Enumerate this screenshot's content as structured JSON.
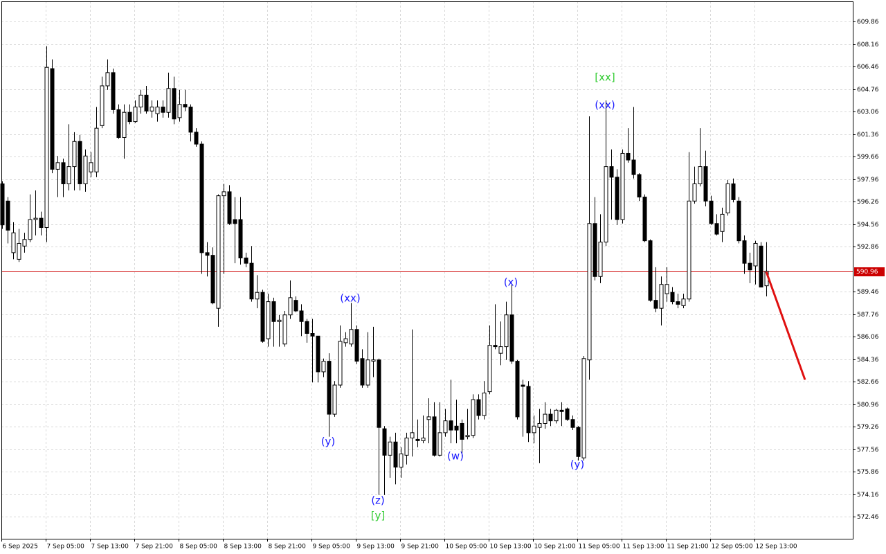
{
  "chart_data": {
    "type": "candlestick",
    "categories": [
      "6 Sep 2025",
      null,
      null,
      null,
      null,
      null,
      null,
      null,
      "7 Sep 05:00",
      null,
      null,
      null,
      null,
      null,
      null,
      null,
      "7 Sep 13:00",
      null,
      null,
      null,
      null,
      null,
      null,
      null,
      "7 Sep 21:00",
      null,
      null,
      null,
      null,
      null,
      null,
      null,
      "8 Sep 05:00",
      null,
      null,
      null,
      null,
      null,
      null,
      null,
      "8 Sep 13:00",
      null,
      null,
      null,
      null,
      null,
      null,
      null,
      "8 Sep 21:00",
      null,
      null,
      null,
      null,
      null,
      null,
      null,
      "9 Sep 05:00",
      null,
      null,
      null,
      null,
      null,
      null,
      null,
      "9 Sep 13:00",
      null,
      null,
      null,
      null,
      null,
      null,
      null,
      "9 Sep 21:00",
      null,
      null,
      null,
      null,
      null,
      null,
      null,
      "10 Sep 05:00",
      null,
      null,
      null,
      null,
      null,
      null,
      null,
      "10 Sep 13:00",
      null,
      null,
      null,
      null,
      null,
      null,
      null,
      "10 Sep 21:00",
      null,
      null,
      null,
      null,
      null,
      null,
      null,
      "11 Sep 05:00",
      null,
      null,
      null,
      null,
      null,
      null,
      null,
      "11 Sep 13:00",
      null,
      null,
      null,
      null,
      null,
      null,
      null,
      "11 Sep 21:00",
      null,
      null,
      null,
      null,
      null,
      null,
      null,
      "12 Sep 05:00",
      null,
      null,
      null,
      null,
      null,
      null,
      null,
      "12 Sep 13:00",
      null,
      null
    ],
    "open": [
      597.6,
      596.3,
      592.4,
      591.9,
      592.9,
      593.4,
      594.9,
      595.0,
      594.3,
      606.3,
      598.7,
      599.2,
      597.6,
      598.9,
      600.8,
      597.6,
      598.5,
      598.5,
      602.0,
      605.0,
      606.0,
      603.2,
      601.1,
      603.0,
      602.3,
      603.4,
      604.3,
      603.1,
      602.9,
      603.4,
      603.0,
      604.8,
      602.6,
      603.6,
      603.4,
      601.5,
      600.6,
      592.4,
      592.2,
      588.2,
      596.7,
      597.0,
      594.9,
      594.9,
      592.0,
      591.6,
      588.9,
      589.4,
      585.9,
      588.7,
      587.2,
      585.5,
      587.7,
      588.8,
      588.0,
      587.2,
      586.3,
      586.1,
      583.4,
      584.2,
      580.2,
      582.4,
      585.6,
      585.5,
      586.6,
      584.4,
      582.4,
      584.2,
      584.3,
      579.1,
      577.1,
      578.1,
      576.2,
      577.1,
      578.4,
      578.3,
      578.2,
      579.8,
      580.0,
      577.1,
      578.8,
      579.7,
      579.3,
      579.5,
      578.5,
      578.6,
      581.3,
      580.1,
      581.9,
      585.4,
      584.8,
      585.3,
      587.7,
      584.2,
      582.4,
      582.3,
      578.8,
      579.2,
      579.5,
      580.2,
      579.7,
      580.5,
      580.6,
      579.8,
      579.2,
      576.9,
      584.3,
      594.6,
      590.6,
      593.2,
      598.9,
      598.1,
      594.9,
      599.9,
      599.4,
      598.3,
      596.6,
      593.3,
      588.8,
      588.2,
      589.3,
      589.4,
      588.7,
      588.4,
      588.9,
      596.3,
      597.6,
      598.9,
      596.3,
      594.6,
      594.0,
      595.4,
      597.6,
      596.3,
      593.3,
      591.6,
      591.4,
      592.9,
      589.9
    ],
    "high": [
      597.8,
      596.6,
      594.7,
      594.2,
      593.9,
      596.8,
      597.1,
      595.5,
      608.0,
      607.0,
      599.7,
      599.5,
      602.1,
      601.5,
      601.3,
      600.2,
      600.0,
      603.4,
      605.7,
      607.0,
      606.3,
      603.6,
      603.6,
      603.6,
      603.9,
      604.7,
      605.0,
      603.9,
      603.9,
      603.9,
      606.0,
      605.7,
      604.7,
      604.7,
      603.6,
      601.8,
      600.8,
      593.2,
      592.8,
      596.8,
      597.6,
      597.5,
      596.6,
      596.6,
      592.4,
      592.9,
      590.7,
      589.6,
      589.3,
      589.0,
      587.7,
      588.0,
      590.3,
      589.1,
      588.5,
      587.4,
      587.4,
      586.1,
      584.4,
      584.8,
      582.7,
      586.9,
      586.4,
      588.6,
      586.9,
      585.1,
      586.4,
      586.8,
      584.4,
      579.3,
      578.5,
      578.8,
      577.7,
      578.8,
      586.6,
      579.8,
      580.1,
      581.4,
      581.1,
      581.1,
      580.6,
      582.8,
      581.3,
      579.8,
      580.6,
      581.7,
      581.7,
      582.7,
      586.9,
      588.5,
      587.2,
      588.7,
      590.0,
      584.3,
      582.8,
      582.7,
      580.1,
      580.6,
      581.1,
      580.6,
      580.6,
      581.1,
      580.7,
      580.1,
      579.3,
      584.6,
      602.7,
      596.6,
      595.3,
      603.9,
      600.2,
      598.7,
      600.2,
      601.8,
      603.4,
      598.4,
      596.8,
      593.4,
      591.3,
      590.6,
      591.3,
      589.8,
      589.3,
      589.3,
      600.0,
      598.9,
      601.8,
      600.1,
      596.7,
      595.3,
      595.8,
      597.9,
      598.0,
      596.6,
      593.7,
      592.4,
      593.3,
      593.2,
      593.2
    ],
    "low": [
      594.2,
      593.1,
      591.9,
      591.7,
      592.4,
      593.2,
      593.7,
      593.7,
      593.2,
      598.4,
      596.6,
      596.6,
      597.1,
      597.1,
      597.1,
      597.0,
      598.1,
      598.1,
      601.8,
      604.7,
      602.9,
      601.0,
      599.5,
      602.1,
      602.2,
      602.9,
      602.9,
      602.6,
      602.3,
      602.6,
      602.6,
      602.1,
      602.3,
      603.1,
      600.8,
      600.4,
      590.8,
      590.6,
      588.5,
      586.8,
      590.8,
      594.5,
      591.6,
      591.5,
      591.3,
      588.7,
      588.2,
      585.6,
      585.3,
      585.3,
      585.3,
      585.3,
      587.4,
      587.9,
      586.1,
      585.6,
      582.6,
      582.6,
      583.0,
      578.5,
      580.0,
      582.2,
      585.3,
      585.3,
      584.0,
      582.2,
      582.2,
      583.0,
      574.1,
      574.1,
      575.4,
      574.9,
      575.4,
      576.4,
      577.0,
      577.7,
      578.0,
      578.0,
      577.0,
      577.0,
      578.5,
      578.0,
      578.0,
      577.0,
      578.3,
      578.4,
      579.8,
      579.8,
      581.7,
      585.1,
      583.9,
      584.3,
      584.0,
      579.8,
      578.5,
      578.1,
      578.0,
      576.5,
      579.1,
      579.3,
      579.5,
      579.3,
      579.7,
      579.0,
      576.7,
      576.7,
      582.8,
      590.3,
      590.1,
      592.9,
      594.9,
      594.5,
      594.6,
      599.2,
      598.0,
      596.3,
      593.2,
      588.7,
      587.9,
      586.9,
      588.7,
      588.5,
      588.2,
      588.2,
      588.7,
      596.1,
      597.4,
      595.9,
      594.5,
      593.7,
      593.2,
      595.2,
      596.2,
      593.1,
      590.8,
      590.1,
      590.0,
      589.8,
      589.1
    ],
    "close": [
      594.5,
      594.1,
      593.9,
      593.1,
      593.4,
      594.9,
      595.0,
      594.3,
      606.4,
      598.7,
      599.2,
      597.6,
      598.9,
      600.8,
      597.6,
      599.7,
      599.2,
      601.8,
      605.0,
      606.0,
      603.2,
      601.1,
      603.0,
      602.3,
      603.4,
      604.3,
      603.1,
      603.4,
      603.4,
      603.0,
      604.8,
      602.5,
      603.6,
      603.4,
      601.5,
      600.6,
      592.4,
      592.2,
      588.6,
      596.7,
      597.0,
      594.6,
      594.6,
      592.0,
      591.6,
      588.9,
      589.4,
      585.7,
      588.7,
      587.2,
      587.3,
      587.7,
      589.0,
      588.0,
      587.2,
      586.3,
      586.1,
      583.4,
      584.2,
      580.2,
      582.4,
      585.7,
      585.9,
      586.6,
      584.2,
      582.4,
      584.3,
      584.3,
      579.2,
      577.1,
      578.1,
      576.2,
      577.2,
      578.4,
      578.8,
      578.2,
      578.4,
      580.0,
      577.1,
      578.8,
      579.7,
      579.0,
      579.0,
      578.3,
      578.6,
      581.3,
      580.1,
      581.8,
      585.4,
      585.3,
      585.3,
      587.7,
      584.2,
      580.0,
      582.3,
      578.8,
      579.3,
      579.5,
      580.2,
      579.7,
      580.5,
      580.4,
      579.8,
      579.2,
      577.0,
      584.4,
      594.6,
      590.6,
      593.2,
      598.9,
      598.1,
      594.9,
      599.9,
      599.4,
      598.3,
      596.6,
      593.3,
      588.8,
      588.2,
      590.0,
      590.0,
      588.7,
      588.5,
      588.9,
      596.3,
      597.6,
      598.9,
      596.3,
      594.6,
      593.8,
      595.3,
      597.6,
      596.4,
      593.3,
      591.6,
      591.1,
      593.1,
      589.8,
      591.0
    ],
    "up_color": "#ffffff",
    "down_color": "#000000",
    "ylim": [
      570.79,
      611.38
    ],
    "yticks": [
      572.46,
      574.16,
      575.86,
      577.56,
      579.26,
      580.96,
      582.66,
      584.36,
      586.06,
      587.76,
      589.46,
      592.86,
      594.56,
      596.26,
      597.96,
      599.66,
      601.36,
      603.06,
      604.76,
      606.46,
      608.16,
      609.86
    ],
    "grid": true,
    "price_line": {
      "value": 590.96,
      "color": "#cc0000"
    },
    "forecast": {
      "x": [
        138,
        145
      ],
      "values": [
        590.96,
        582.8
      ],
      "color": "#e01010"
    },
    "annotations": [
      {
        "text": "[xx]",
        "color": "#33cc33"
      },
      {
        "text": "(xx)",
        "color": "#1a1aff"
      },
      {
        "text": "(xx)",
        "color": "#1a1aff"
      },
      {
        "text": "(x)",
        "color": "#1a1aff"
      },
      {
        "text": "(y)",
        "color": "#1a1aff"
      },
      {
        "text": "(w)",
        "color": "#1a1aff"
      },
      {
        "text": "(y)",
        "color": "#1a1aff"
      },
      {
        "text": "(z)",
        "color": "#1a1aff"
      },
      {
        "text": "[y]",
        "color": "#33cc33"
      }
    ]
  }
}
